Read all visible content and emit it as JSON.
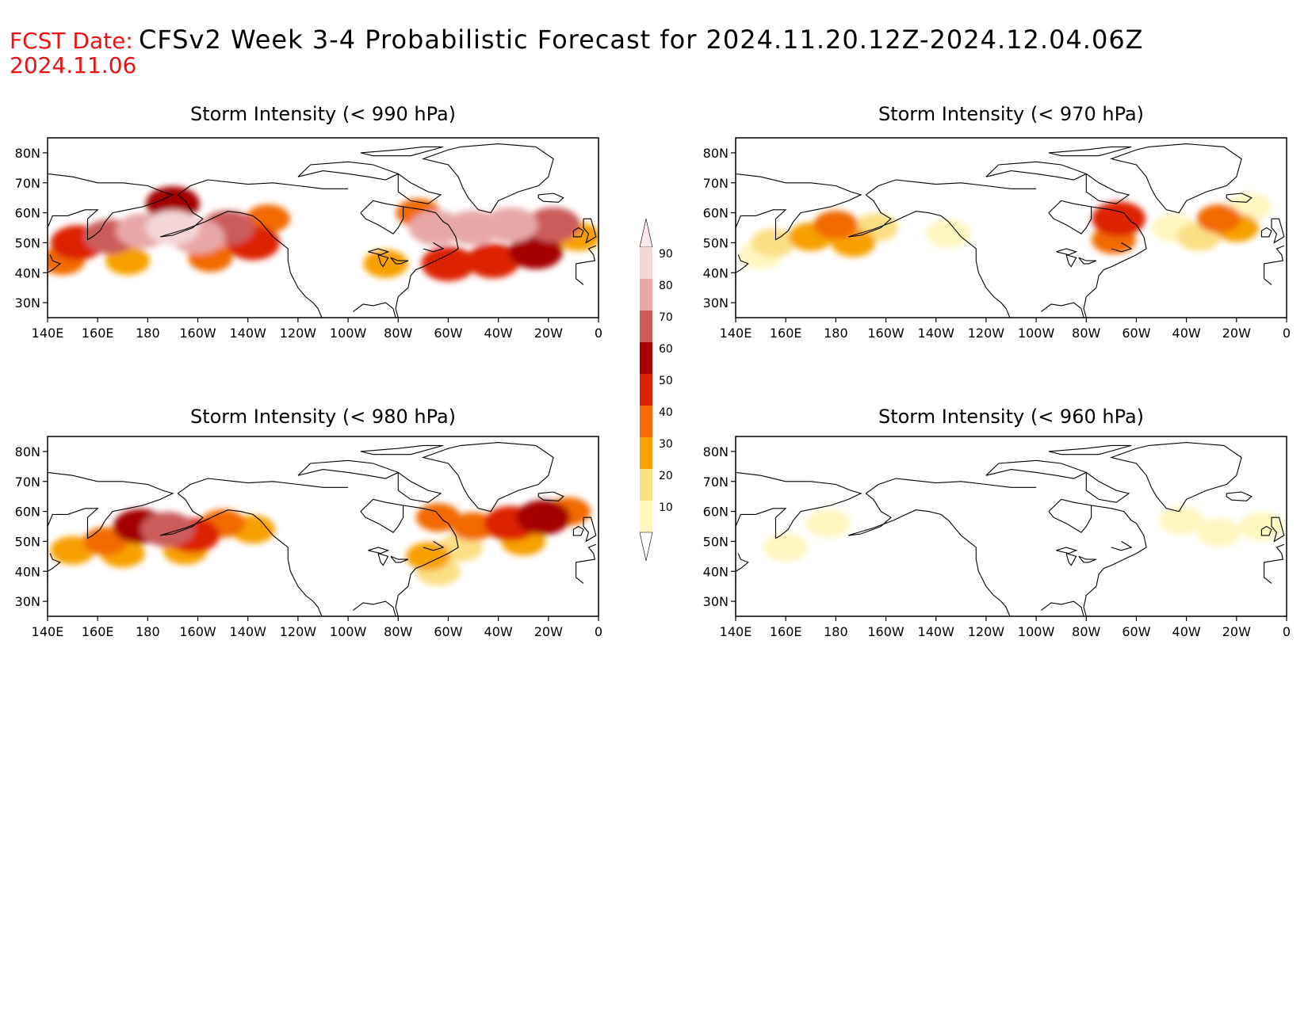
{
  "header": {
    "fcst_label": "FCST Date:",
    "fcst_date": "2024.11.06",
    "title": "CFSv2 Week 3-4 Probabilistic Forecast for 2024.11.20.12Z-2024.12.04.06Z"
  },
  "axes": {
    "lon_labels": [
      "140E",
      "160E",
      "180",
      "160W",
      "140W",
      "120W",
      "100W",
      "80W",
      "60W",
      "40W",
      "20W",
      "0"
    ],
    "lat_labels": [
      "80N",
      "70N",
      "60N",
      "50N",
      "40N",
      "30N"
    ],
    "lon_range": [
      140,
      360
    ],
    "lat_range": [
      25,
      85
    ]
  },
  "panels": [
    {
      "id": "p990",
      "title": "Storm Intensity (< 990 hPa)",
      "blobs": [
        {
          "lon": 152,
          "lat": 50,
          "level": 50
        },
        {
          "lon": 165,
          "lat": 52,
          "level": 70
        },
        {
          "lon": 178,
          "lat": 54,
          "level": 85
        },
        {
          "lon": 190,
          "lat": 55,
          "level": 92
        },
        {
          "lon": 200,
          "lat": 52,
          "level": 80
        },
        {
          "lon": 212,
          "lat": 55,
          "level": 70
        },
        {
          "lon": 222,
          "lat": 50,
          "level": 55
        },
        {
          "lon": 146,
          "lat": 44,
          "level": 40
        },
        {
          "lon": 172,
          "lat": 44,
          "level": 35
        },
        {
          "lon": 205,
          "lat": 45,
          "level": 45
        },
        {
          "lon": 228,
          "lat": 58,
          "level": 40
        },
        {
          "lon": 190,
          "lat": 63,
          "level": 60
        },
        {
          "lon": 295,
          "lat": 55,
          "level": 80
        },
        {
          "lon": 310,
          "lat": 55,
          "level": 85
        },
        {
          "lon": 325,
          "lat": 56,
          "level": 80
        },
        {
          "lon": 342,
          "lat": 56,
          "level": 75
        },
        {
          "lon": 300,
          "lat": 43,
          "level": 50
        },
        {
          "lon": 318,
          "lat": 44,
          "level": 55
        },
        {
          "lon": 335,
          "lat": 47,
          "level": 60
        },
        {
          "lon": 352,
          "lat": 52,
          "level": 35
        },
        {
          "lon": 288,
          "lat": 60,
          "level": 40
        },
        {
          "lon": 275,
          "lat": 43,
          "level": 30
        }
      ]
    },
    {
      "id": "p970",
      "title": "Storm Intensity (< 970 hPa)",
      "blobs": [
        {
          "lon": 155,
          "lat": 50,
          "level": 20
        },
        {
          "lon": 170,
          "lat": 52,
          "level": 30
        },
        {
          "lon": 180,
          "lat": 56,
          "level": 40
        },
        {
          "lon": 187,
          "lat": 50,
          "level": 35
        },
        {
          "lon": 196,
          "lat": 55,
          "level": 20
        },
        {
          "lon": 150,
          "lat": 46,
          "level": 15
        },
        {
          "lon": 225,
          "lat": 53,
          "level": 10
        },
        {
          "lon": 293,
          "lat": 58,
          "level": 55
        },
        {
          "lon": 291,
          "lat": 51,
          "level": 40
        },
        {
          "lon": 315,
          "lat": 55,
          "level": 15
        },
        {
          "lon": 325,
          "lat": 52,
          "level": 20
        },
        {
          "lon": 333,
          "lat": 58,
          "level": 40
        },
        {
          "lon": 340,
          "lat": 55,
          "level": 30
        },
        {
          "lon": 345,
          "lat": 62,
          "level": 15
        }
      ]
    },
    {
      "id": "p980",
      "title": "Storm Intensity (< 980 hPa)",
      "blobs": [
        {
          "lon": 150,
          "lat": 47,
          "level": 35
        },
        {
          "lon": 163,
          "lat": 50,
          "level": 45
        },
        {
          "lon": 177,
          "lat": 55,
          "level": 60
        },
        {
          "lon": 188,
          "lat": 54,
          "level": 70
        },
        {
          "lon": 198,
          "lat": 52,
          "level": 55
        },
        {
          "lon": 210,
          "lat": 56,
          "level": 45
        },
        {
          "lon": 222,
          "lat": 54,
          "level": 30
        },
        {
          "lon": 170,
          "lat": 46,
          "level": 30
        },
        {
          "lon": 195,
          "lat": 47,
          "level": 35
        },
        {
          "lon": 296,
          "lat": 58,
          "level": 45
        },
        {
          "lon": 310,
          "lat": 55,
          "level": 40
        },
        {
          "lon": 325,
          "lat": 56,
          "level": 50
        },
        {
          "lon": 338,
          "lat": 58,
          "level": 60
        },
        {
          "lon": 348,
          "lat": 60,
          "level": 45
        },
        {
          "lon": 305,
          "lat": 48,
          "level": 25
        },
        {
          "lon": 292,
          "lat": 45,
          "level": 30
        },
        {
          "lon": 296,
          "lat": 40,
          "level": 25
        },
        {
          "lon": 330,
          "lat": 50,
          "level": 30
        }
      ]
    },
    {
      "id": "p960",
      "title": "Storm Intensity (< 960 hPa)",
      "blobs": [
        {
          "lon": 177,
          "lat": 56,
          "level": 15
        },
        {
          "lon": 160,
          "lat": 48,
          "level": 15
        },
        {
          "lon": 318,
          "lat": 57,
          "level": 12
        },
        {
          "lon": 333,
          "lat": 53,
          "level": 15
        },
        {
          "lon": 350,
          "lat": 55,
          "level": 12
        }
      ]
    }
  ],
  "colorbar": {
    "labels": [
      "90",
      "80",
      "70",
      "60",
      "50",
      "40",
      "30",
      "20",
      "10"
    ],
    "colors": [
      "#f4d6d6",
      "#e8a7a7",
      "#cc5c5c",
      "#a50000",
      "#dd2200",
      "#f26a00",
      "#f7a000",
      "#fbdf84",
      "#fff6c0"
    ]
  },
  "colors": {
    "header_label": "#ee1111",
    "text": "#000000",
    "coast": "#000000"
  }
}
